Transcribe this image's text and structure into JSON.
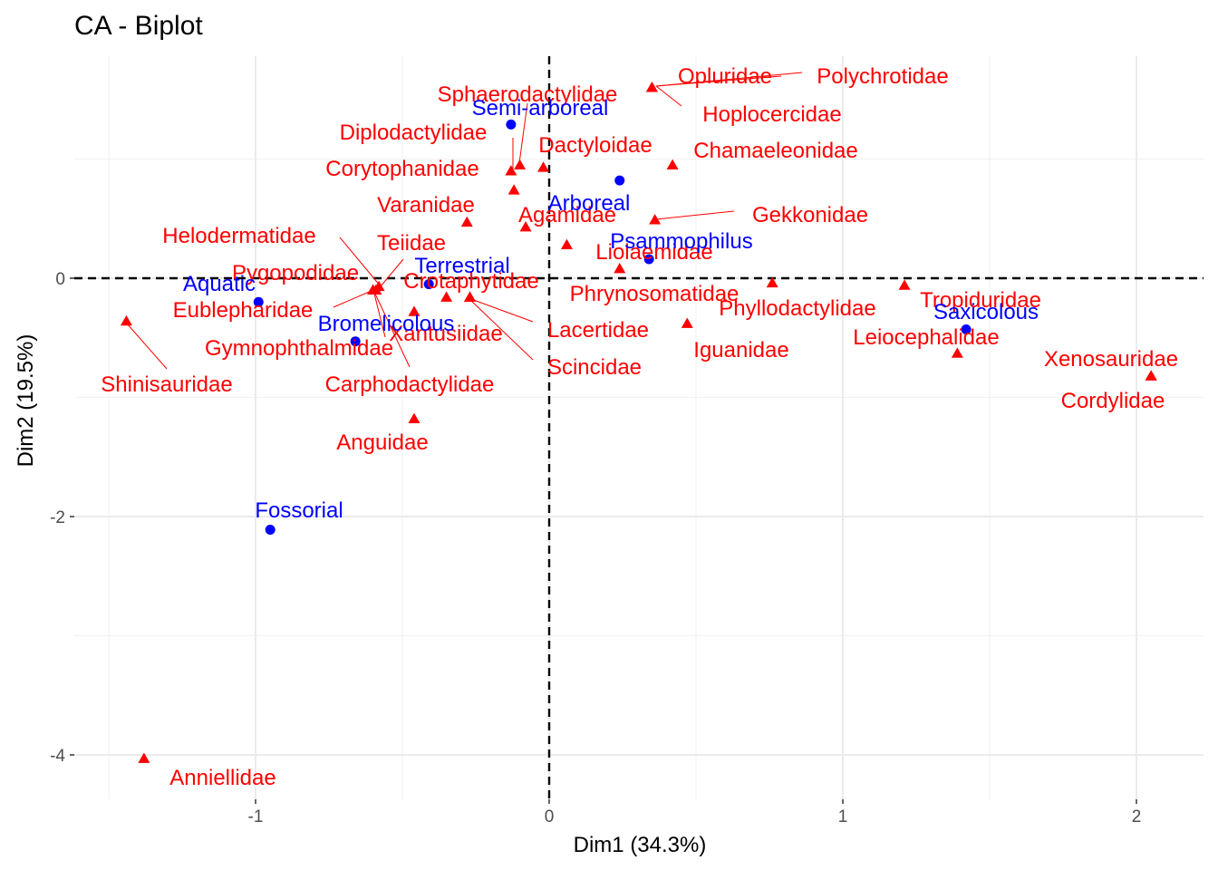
{
  "chart_data": {
    "type": "scatter",
    "title": "CA - Biplot",
    "xlabel": "Dim1 (34.3%)",
    "ylabel": "Dim2 (19.5%)",
    "xlim": [
      -1.5,
      2.2
    ],
    "ylim": [
      -4.2,
      1.65
    ],
    "xticks": [
      -1,
      0,
      1,
      2
    ],
    "yticks": [
      -4,
      -2,
      0
    ],
    "grid": true,
    "reference_lines": {
      "x": 0,
      "y": 0
    },
    "colors": {
      "rows": "#ff0000",
      "cols": "#0000ff"
    },
    "series": [
      {
        "marker": "triangle",
        "color": "#ff0000",
        "points": [
          {
            "label": "Opluridae",
            "x": 0.35,
            "y": 1.6
          },
          {
            "label": "Polychrotidae",
            "x": 0.35,
            "y": 1.6
          },
          {
            "label": "Hoplocercidae",
            "x": 0.35,
            "y": 1.6
          },
          {
            "label": "Sphaerodactylidae",
            "x": -0.1,
            "y": 0.95
          },
          {
            "label": "Dactyloidae",
            "x": -0.02,
            "y": 0.93
          },
          {
            "label": "Diplodactylidae",
            "x": -0.13,
            "y": 0.9
          },
          {
            "label": "Corytophanidae",
            "x": -0.12,
            "y": 0.74
          },
          {
            "label": "Chamaeleonidae",
            "x": 0.42,
            "y": 0.95
          },
          {
            "label": "Varanidae",
            "x": -0.28,
            "y": 0.47
          },
          {
            "label": "Agamidae",
            "x": -0.08,
            "y": 0.43
          },
          {
            "label": "Gekkonidae",
            "x": 0.36,
            "y": 0.49
          },
          {
            "label": "Liolaemidae",
            "x": 0.06,
            "y": 0.28
          },
          {
            "label": "Phrynosomatidae",
            "x": 0.24,
            "y": 0.08
          },
          {
            "label": "Teiidae",
            "x": -0.58,
            "y": -0.07
          },
          {
            "label": "Helodermatidae",
            "x": -0.59,
            "y": -0.1
          },
          {
            "label": "Pygopodidae",
            "x": -0.6,
            "y": -0.1
          },
          {
            "label": "Eublepharidae",
            "x": -0.6,
            "y": -0.1
          },
          {
            "label": "Gymnophthalmidae",
            "x": -0.6,
            "y": -0.1
          },
          {
            "label": "Carphodactylidae",
            "x": -0.6,
            "y": -0.1
          },
          {
            "label": "Crotaphytidae",
            "x": -0.35,
            "y": -0.16
          },
          {
            "label": "Lacertidae",
            "x": -0.27,
            "y": -0.16
          },
          {
            "label": "Scincidae",
            "x": -0.27,
            "y": -0.16
          },
          {
            "label": "Xantusiidae",
            "x": -0.46,
            "y": -0.28
          },
          {
            "label": "Phyllodactylidae",
            "x": 0.76,
            "y": -0.04
          },
          {
            "label": "Iguanidae",
            "x": 0.47,
            "y": -0.38
          },
          {
            "label": "Tropiduridae",
            "x": 1.21,
            "y": -0.06
          },
          {
            "label": "Leiocephalidae",
            "x": 1.39,
            "y": -0.63
          },
          {
            "label": "Xenosauridae",
            "x": 2.05,
            "y": -0.82
          },
          {
            "label": "Cordylidae",
            "x": 2.05,
            "y": -0.82
          },
          {
            "label": "Shinisauridae",
            "x": -1.44,
            "y": -0.36
          },
          {
            "label": "Anguidae",
            "x": -0.46,
            "y": -1.18
          },
          {
            "label": "Anniellidae",
            "x": -1.38,
            "y": -4.03
          }
        ]
      },
      {
        "marker": "circle",
        "color": "#0000ff",
        "points": [
          {
            "label": "Semi-arboreal",
            "x": -0.13,
            "y": 1.29
          },
          {
            "label": "Arboreal",
            "x": 0.24,
            "y": 0.82
          },
          {
            "label": "Psammophilus",
            "x": 0.34,
            "y": 0.16
          },
          {
            "label": "Terrestrial",
            "x": -0.41,
            "y": -0.05
          },
          {
            "label": "Aquatic",
            "x": -0.99,
            "y": -0.2
          },
          {
            "label": "Bromelicolous",
            "x": -0.66,
            "y": -0.53
          },
          {
            "label": "Saxicolous",
            "x": 1.42,
            "y": -0.43
          },
          {
            "label": "Fossorial",
            "x": -0.95,
            "y": -2.11
          }
        ]
      }
    ]
  }
}
